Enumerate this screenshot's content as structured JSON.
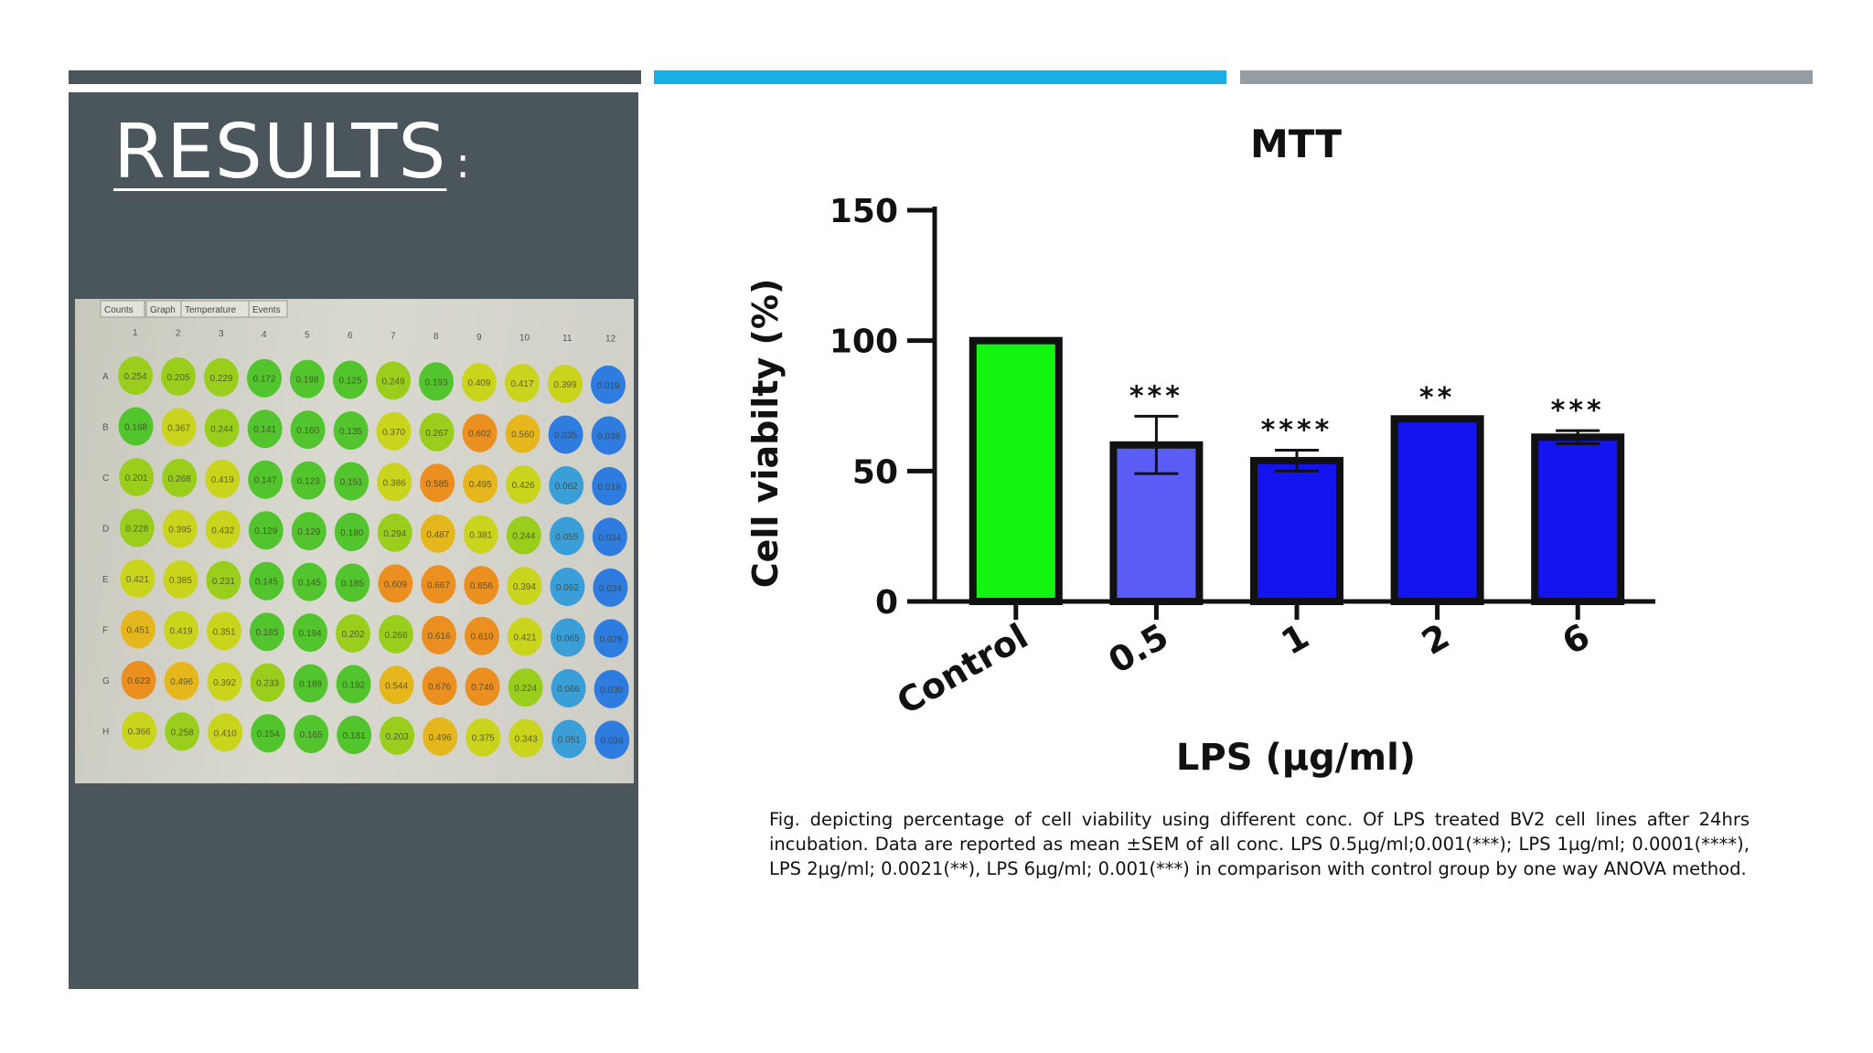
{
  "slide": {
    "title": "RESULTS",
    "title_colon": ":",
    "accent_colors": [
      "#4a555c",
      "#1aaee5",
      "#949da2"
    ],
    "panel_color": "#4a555c"
  },
  "plate_photo": {
    "tabs": [
      "Counts",
      "Graph",
      "Temperature",
      "Events"
    ],
    "columns": [
      "1",
      "2",
      "3",
      "4",
      "5",
      "6",
      "7",
      "8",
      "9",
      "10",
      "11",
      "12"
    ],
    "rows": [
      "A",
      "B",
      "C",
      "D",
      "E",
      "F",
      "G",
      "H"
    ],
    "wells": [
      [
        "0.254",
        "0.205",
        "0.229",
        "0.172",
        "0.198",
        "0.125",
        "0.249",
        "0.193",
        "0.409",
        "0.417",
        "0.399",
        "0.019"
      ],
      [
        "0.168",
        "0.367",
        "0.244",
        "0.141",
        "0.160",
        "0.135",
        "0.370",
        "0.267",
        "0.602",
        "0.560",
        "0.035",
        "0.038"
      ],
      [
        "0.201",
        "0.268",
        "0.419",
        "0.147",
        "0.123",
        "0.151",
        "0.386",
        "0.585",
        "0.495",
        "0.426",
        "0.062",
        "0.019"
      ],
      [
        "0.228",
        "0.395",
        "0.432",
        "0.129",
        "0.129",
        "0.180",
        "0.294",
        "0.487",
        "0.381",
        "0.244",
        "0.055",
        "0.034"
      ],
      [
        "0.421",
        "0.385",
        "0.231",
        "0.145",
        "0.145",
        "0.185",
        "0.609",
        "0.667",
        "0.656",
        "0.394",
        "0.062",
        "0.034"
      ],
      [
        "0.451",
        "0.419",
        "0.351",
        "0.185",
        "0.194",
        "0.202",
        "0.266",
        "0.616",
        "0.610",
        "0.421",
        "0.065",
        "0.029"
      ],
      [
        "0.623",
        "0.496",
        "0.392",
        "0.233",
        "0.189",
        "0.192",
        "0.544",
        "0.676",
        "0.746",
        "0.224",
        "0.066",
        "0.030"
      ],
      [
        "0.366",
        "0.258",
        "0.410",
        "0.154",
        "0.165",
        "0.181",
        "0.203",
        "0.496",
        "0.375",
        "0.343",
        "0.051",
        "0.036"
      ]
    ]
  },
  "chart_data": {
    "type": "bar",
    "title": "MTT",
    "xlabel": "LPS (µg/ml)",
    "ylabel": "Cell viabilty (%)",
    "categories": [
      "Control",
      "0.5",
      "1",
      "2",
      "6"
    ],
    "values": [
      100,
      60,
      54,
      70,
      63
    ],
    "error": [
      0,
      11,
      4,
      0.5,
      2.5
    ],
    "significance": [
      "",
      "***",
      "****",
      "**",
      "***"
    ],
    "bar_colors": [
      "#11f511",
      "#5a5cf5",
      "#1414f0",
      "#1414f0",
      "#1414f0"
    ],
    "yticks": [
      0,
      50,
      100,
      150
    ],
    "ylim": [
      0,
      150
    ],
    "grid": false
  },
  "caption": "Fig. depicting percentage of cell viability using different conc. Of LPS treated BV2 cell lines after 24hrs incubation. Data are reported as mean ±SEM of all conc. LPS 0.5µg/ml;0.001(***); LPS 1µg/ml; 0.0001(****), LPS 2µg/ml; 0.0021(**), LPS 6µg/ml; 0.001(***) in comparison with control group by one way ANOVA method."
}
